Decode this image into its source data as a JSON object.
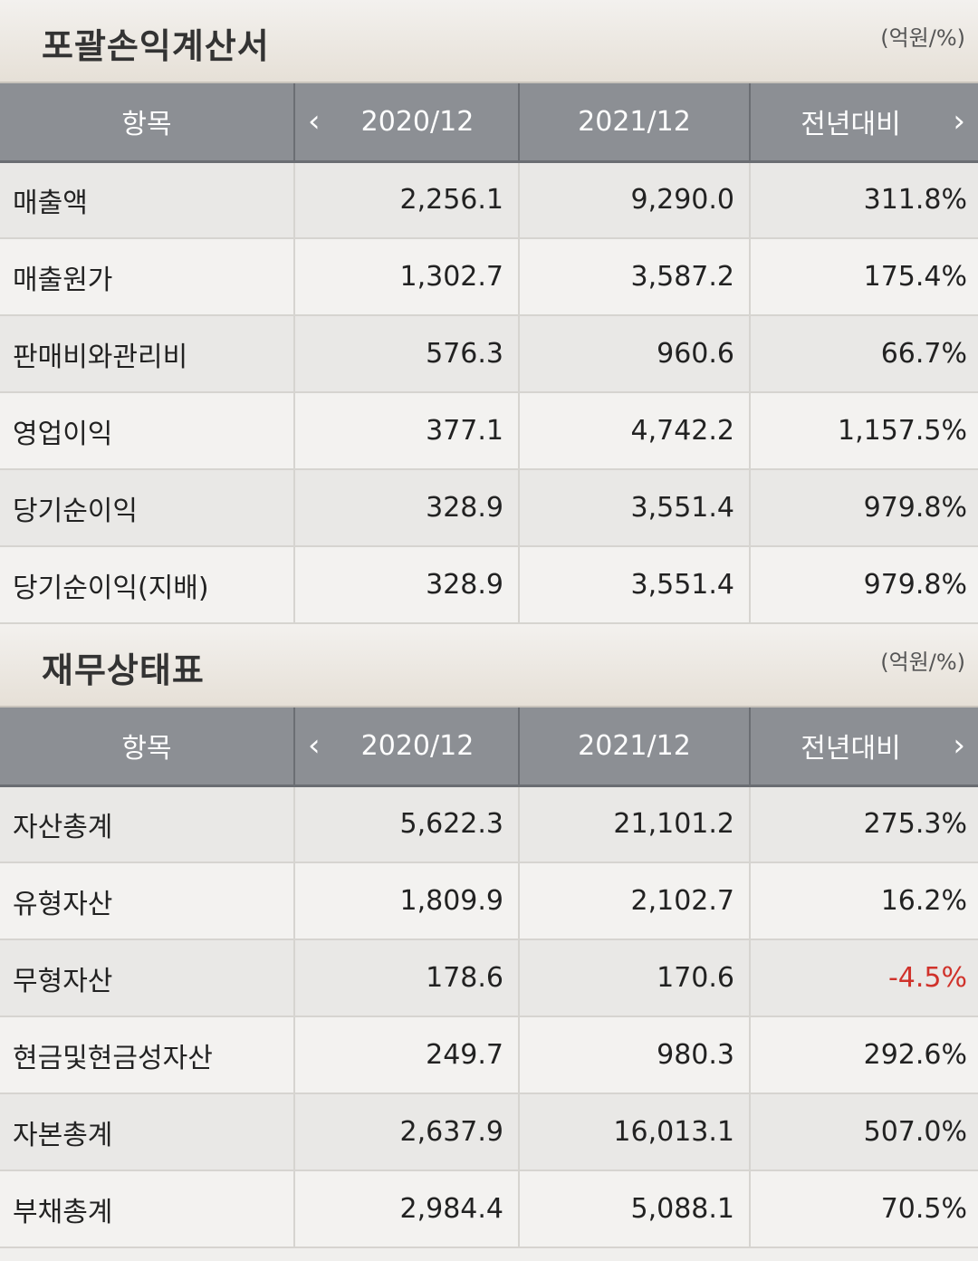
{
  "income": {
    "title": "포괄손익계산서",
    "unit": "(억원/%)",
    "headers": [
      "항목",
      "2020/12",
      "2021/12",
      "전년대비"
    ],
    "rows": [
      [
        "매출액",
        "2,256.1",
        "9,290.0",
        "311.8%"
      ],
      [
        "매출원가",
        "1,302.7",
        "3,587.2",
        "175.4%"
      ],
      [
        "판매비와관리비",
        "576.3",
        "960.6",
        "66.7%"
      ],
      [
        "영업이익",
        "377.1",
        "4,742.2",
        "1,157.5%"
      ],
      [
        "당기순이익",
        "328.9",
        "3,551.4",
        "979.8%"
      ],
      [
        "당기순이익(지배)",
        "328.9",
        "3,551.4",
        "979.8%"
      ]
    ]
  },
  "balance": {
    "title": "재무상태표",
    "unit": "(억원/%)",
    "headers": [
      "항목",
      "2020/12",
      "2021/12",
      "전년대비"
    ],
    "rows": [
      [
        "자산총계",
        "5,622.3",
        "21,101.2",
        "275.3%"
      ],
      [
        "유형자산",
        "1,809.9",
        "2,102.7",
        "16.2%"
      ],
      [
        "무형자산",
        "178.6",
        "170.6",
        "-4.5%"
      ],
      [
        "현금및현금성자산",
        "249.7",
        "980.3",
        "292.6%"
      ],
      [
        "자본총계",
        "2,637.9",
        "16,013.1",
        "507.0%"
      ],
      [
        "부채총계",
        "2,984.4",
        "5,088.1",
        "70.5%"
      ]
    ]
  },
  "icons": {
    "prev": "chevron-left-icon",
    "next": "chevron-right-icon"
  },
  "colors": {
    "header_bg": "#8c8f94",
    "negative": "#d0322b"
  }
}
